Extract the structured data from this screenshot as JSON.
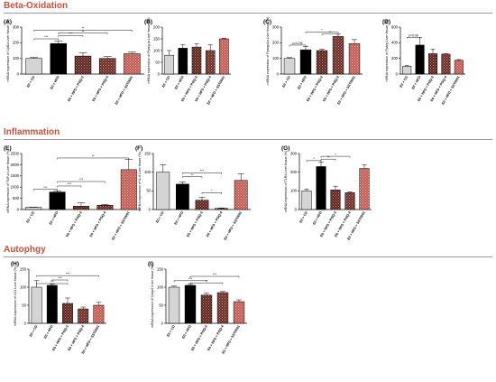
{
  "figure": {
    "sections": [
      "Beta-Oxidation",
      "Inflammation",
      "Autophgy"
    ]
  },
  "colors": {
    "cd": "#d4d4d4",
    "hfd": "#000000",
    "pgq2": "#5c2018",
    "pgq4": "#6b2a22",
    "sst": "#c05a52",
    "section_title": "#c8503a"
  },
  "common": {
    "categories": [
      "E0 + CD",
      "E0 + HFD",
      "E0 + HFD + PGQ-2",
      "E0 + HFD + PGQ-4",
      "E0 + HFD + SST0001"
    ]
  },
  "chart_data": [
    {
      "type": "bar",
      "panel": "(A)",
      "categories": [
        "E0 + CD",
        "E0 + HFD",
        "E0 + HFD + PGQ-2",
        "E0 + HFD + PGQ-4",
        "E0 + HFD + SST0001"
      ],
      "values": [
        100,
        195,
        115,
        100,
        130
      ],
      "errors": [
        6,
        15,
        20,
        12,
        10
      ],
      "ylim": [
        0,
        300
      ],
      "yticks": [
        0,
        100,
        200,
        300
      ],
      "ylabel": "mRNA expression of Cpt1a Liver tissue (%)",
      "annotations": [
        "***",
        "***",
        "**",
        "**",
        "**"
      ]
    },
    {
      "type": "bar",
      "panel": "(B)",
      "categories": [
        "E0 + CD",
        "E0 + HFD",
        "E0 + HFD + PGQ-2",
        "E0 + HFD + PGQ-4",
        "E0 + HFD + SST0001"
      ],
      "values": [
        80,
        110,
        115,
        100,
        150
      ],
      "errors": [
        20,
        15,
        15,
        25,
        3
      ],
      "ylim": [
        0,
        200
      ],
      "yticks": [
        0,
        50,
        100,
        150,
        200
      ],
      "ylabel": "mRNA expression of Pparg-la Liver tissue (%)",
      "annotations": []
    },
    {
      "type": "bar",
      "panel": "(C)",
      "categories": [
        "E0 + CD",
        "E0 + HFD",
        "E0 + HFD + PGQ-2",
        "E0 + HFD + PGQ-4",
        "E0 + HFD + SST0001"
      ],
      "values": [
        100,
        155,
        150,
        240,
        195
      ],
      "errors": [
        5,
        20,
        10,
        15,
        25
      ],
      "ylim": [
        0,
        300
      ],
      "yticks": [
        0,
        100,
        200,
        300
      ],
      "ylabel": "mRNA expression of Ppargc1a Liver tissue (%)",
      "annotations": [
        "p=0.06",
        "*",
        "**"
      ]
    },
    {
      "type": "bar",
      "panel": "(D)",
      "categories": [
        "E0 + CD",
        "E0 + HFD",
        "E0 + HFD + PGQ-2",
        "E0 + HFD + PGQ-4",
        "E0 + HFD + SST0001"
      ],
      "values": [
        100,
        370,
        260,
        255,
        175
      ],
      "errors": [
        8,
        100,
        60,
        5,
        10
      ],
      "ylim": [
        0,
        600
      ],
      "yticks": [
        0,
        200,
        400,
        600
      ],
      "ylabel": "mRNA expression of Pparg Liver tissue (%)",
      "annotations": [
        "p=0.09"
      ]
    },
    {
      "type": "bar",
      "panel": "(E)",
      "categories": [
        "E0 + CD",
        "E0 + HFD",
        "E0 + HFD + PGQ-2",
        "E0 + HFD + PGQ-4",
        "E0 + HFD + SST0001"
      ],
      "values": [
        100,
        780,
        150,
        190,
        1780
      ],
      "errors": [
        10,
        60,
        150,
        40,
        450
      ],
      "ylim": [
        0,
        2500
      ],
      "yticks": [
        0,
        500,
        1000,
        1500,
        2000,
        2500
      ],
      "ylabel": "mRNA expression of TNF-α Liver tissue (%)",
      "annotations": [
        "***",
        "***",
        "***",
        "***",
        "**"
      ]
    },
    {
      "type": "bar",
      "panel": "(F)",
      "categories": [
        "E0 + CD",
        "E0 + HFD",
        "E0 + HFD + PGQ-2",
        "E0 + HFD + PGQ-4",
        "E0 + HFD + SST0001"
      ],
      "values": [
        100,
        68,
        25,
        3,
        78
      ],
      "errors": [
        20,
        6,
        8,
        1,
        18
      ],
      "ylim": [
        0,
        150
      ],
      "yticks": [
        0,
        50,
        100,
        150
      ],
      "ylabel": "mRNA expression of IL-6 Liver tissue (%)",
      "annotations": [
        "***",
        "**",
        "*",
        "***"
      ]
    },
    {
      "type": "bar",
      "panel": "(G)",
      "categories": [
        "E0 + CD",
        "E0 + HFD",
        "E0 + HFD + PGQ-2",
        "E0 + HFD + PGQ-4",
        "E0 + HFD + SST0001"
      ],
      "values": [
        100,
        230,
        105,
        90,
        220
      ],
      "errors": [
        10,
        25,
        20,
        5,
        20
      ],
      "ylim": [
        0,
        300
      ],
      "yticks": [
        0,
        100,
        200,
        300
      ],
      "ylabel": "mRNA expression of TLR4 Liver tissue (%)",
      "annotations": [
        "*",
        "**",
        "*",
        "**"
      ]
    },
    {
      "type": "bar",
      "panel": "(H)",
      "categories": [
        "E0 + CD",
        "E0 + HFD",
        "E0 + HFD + PGQ-2",
        "E0 + HFD + PGQ-4",
        "E0 + HFD + SST0001"
      ],
      "values": [
        100,
        105,
        55,
        40,
        50
      ],
      "errors": [
        18,
        3,
        15,
        5,
        8
      ],
      "ylim": [
        0,
        150
      ],
      "yticks": [
        0,
        50,
        100,
        150
      ],
      "ylabel": "mRNA expression of LC3 Liver tissue (%)",
      "annotations": [
        "***",
        "***",
        "***"
      ]
    },
    {
      "type": "bar",
      "panel": "(I)",
      "categories": [
        "E0 + CD",
        "E0 + HFD",
        "E0 + HFD + PGQ-2",
        "E0 + HFD + PGQ-4",
        "E0 + HFD + SST0001"
      ],
      "values": [
        100,
        105,
        78,
        85,
        60
      ],
      "errors": [
        3,
        3,
        5,
        3,
        5
      ],
      "ylim": [
        0,
        150
      ],
      "yticks": [
        0,
        50,
        100,
        150
      ],
      "ylabel": "mRNA expression of Casp3 Liver tissue (%)",
      "annotations": [
        "***",
        "**",
        "***"
      ]
    }
  ]
}
